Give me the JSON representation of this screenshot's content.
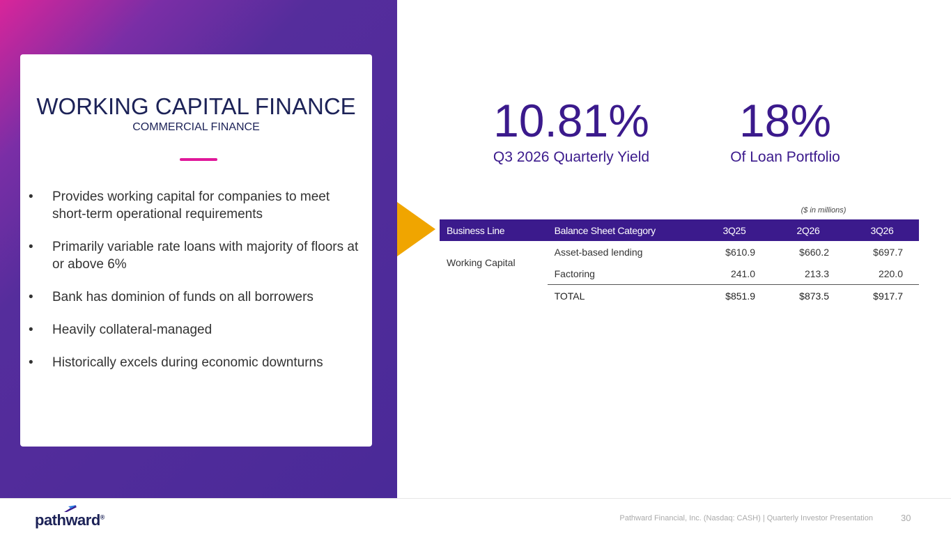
{
  "card": {
    "title": "WORKING CAPITAL FINANCE",
    "subtitle": "COMMERCIAL FINANCE",
    "bullets": [
      "Provides working capital for companies to meet short-term operational requirements",
      "Primarily variable rate loans with majority of floors at or above 6%",
      "Bank has dominion of funds on all borrowers",
      "Heavily collateral-managed",
      "Historically excels during economic downturns"
    ]
  },
  "stats": [
    {
      "value": "10.81%",
      "label": "Q3 2026 Quarterly Yield"
    },
    {
      "value": "18%",
      "label": "Of Loan Portfolio"
    }
  ],
  "table": {
    "note": "($ in millions)",
    "header": [
      "Business Line",
      "Balance Sheet Category",
      "3Q25",
      "2Q26",
      "3Q26"
    ],
    "business_line": "Working Capital",
    "rows": [
      [
        "Asset-based lending",
        "$610.9",
        "$660.2",
        "$697.7"
      ],
      [
        "Factoring",
        "241.0",
        "213.3",
        "220.0"
      ]
    ],
    "total": [
      "TOTAL",
      "$851.9",
      "$873.5",
      "$917.7"
    ]
  },
  "footer": {
    "logo": "pathward",
    "logo_mark": "®",
    "text": "Pathward Financial, Inc. (Nasdaq: CASH) | Quarterly Investor Presentation",
    "page": "30"
  }
}
